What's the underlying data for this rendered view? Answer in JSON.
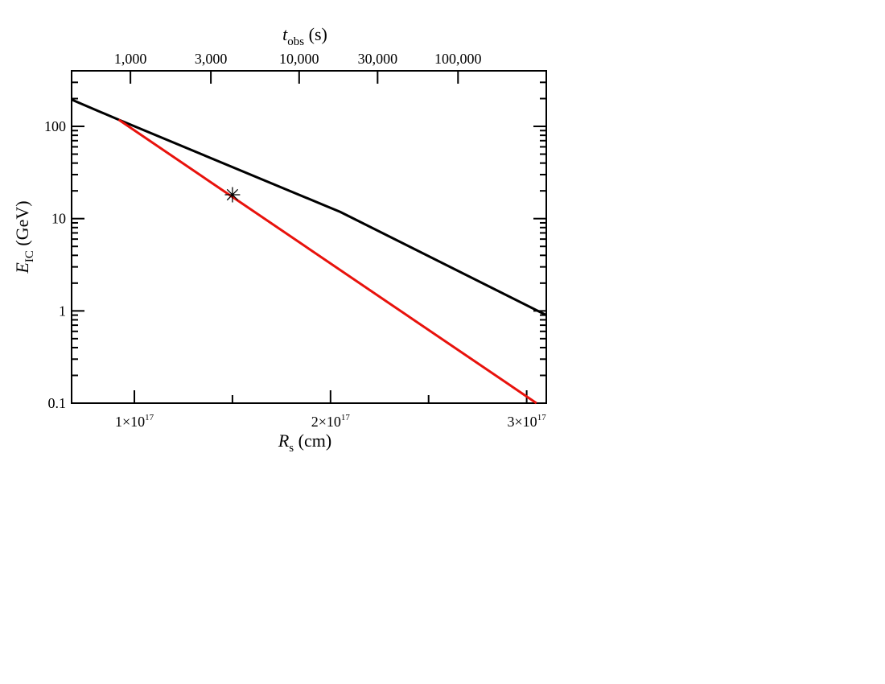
{
  "chart_data": {
    "type": "line",
    "x_scale": "linear",
    "y_scale": "log",
    "xlim": [
      6.8e+16,
      3.1e+17
    ],
    "ylim": [
      0.1,
      400
    ],
    "grid": false,
    "legend": "none",
    "xlabel": {
      "symbol": "R",
      "sub": "s",
      "unit": "(cm)"
    },
    "ylabel": {
      "symbol": "E",
      "sub": "IC",
      "unit": "(GeV)"
    },
    "top_label": {
      "symbol": "t",
      "sub": "obs",
      "unit": "(s)"
    },
    "x_ticks": [
      {
        "value": 1e+17,
        "mant": "1",
        "exp": "17"
      },
      {
        "value": 2e+17,
        "mant": "2",
        "exp": "17"
      },
      {
        "value": 3e+17,
        "mant": "3",
        "exp": "17"
      }
    ],
    "y_ticks": [
      {
        "value": 0.1,
        "label": "0.1"
      },
      {
        "value": 1,
        "label": "1"
      },
      {
        "value": 10,
        "label": "10"
      },
      {
        "value": 100,
        "label": "100"
      }
    ],
    "top_ticks": [
      {
        "label": "1,000",
        "x": 9.8e+16
      },
      {
        "label": "3,000",
        "x": 1.39e+17
      },
      {
        "label": "10,000",
        "x": 1.84e+17
      },
      {
        "label": "30,000",
        "x": 2.24e+17
      },
      {
        "label": "100,000",
        "x": 2.65e+17
      }
    ],
    "series": [
      {
        "color": "#000000",
        "points": [
          [
            6.8e+16,
            195
          ],
          [
            9.2e+16,
            118
          ],
          [
            2.05e+17,
            11.8
          ],
          [
            3.1e+17,
            0.9
          ]
        ]
      },
      {
        "color": "#e8120c",
        "points": [
          [
            9.2e+16,
            118
          ],
          [
            3.05e+17,
            0.1
          ]
        ]
      }
    ],
    "markers": [
      {
        "symbol": "✳",
        "x": 1.5e+17,
        "y": 18
      }
    ],
    "times_sign": "×"
  }
}
